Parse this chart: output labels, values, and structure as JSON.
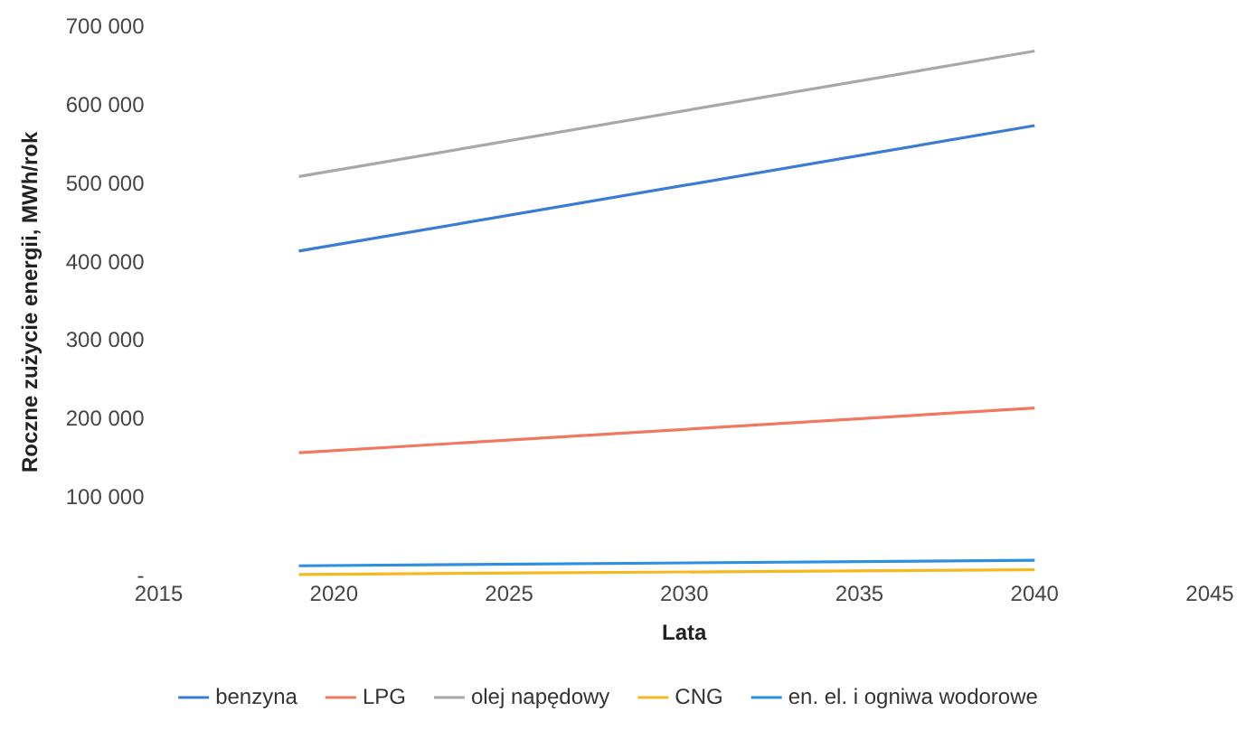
{
  "chart_data": {
    "type": "line",
    "xlabel": "Lata",
    "ylabel": "Roczne zużycie energii, MWh/rok",
    "x": [
      2019,
      2040
    ],
    "series": [
      {
        "name": "benzyna",
        "color": "#3a7bd5",
        "values": [
          415000,
          575000
        ]
      },
      {
        "name": "LPG",
        "color": "#f07860",
        "values": [
          158000,
          215000
        ]
      },
      {
        "name": "olej napędowy",
        "color": "#a8a8a8",
        "values": [
          510000,
          670000
        ]
      },
      {
        "name": "CNG",
        "color": "#f5b820",
        "values": [
          3000,
          9000
        ]
      },
      {
        "name": "en. el. i ogniwa wodorowe",
        "color": "#2e8ee0",
        "values": [
          14000,
          21000
        ]
      }
    ],
    "xlim": [
      2015,
      2045
    ],
    "xticks": [
      2015,
      2020,
      2025,
      2030,
      2035,
      2040,
      2045
    ],
    "ylim": [
      0,
      700000
    ],
    "yticks": [
      {
        "value": 0,
        "label": "-"
      },
      {
        "value": 100000,
        "label": "100 000"
      },
      {
        "value": 200000,
        "label": "200 000"
      },
      {
        "value": 300000,
        "label": "300 000"
      },
      {
        "value": 400000,
        "label": "400 000"
      },
      {
        "value": 500000,
        "label": "500 000"
      },
      {
        "value": 600000,
        "label": "600 000"
      },
      {
        "value": 700000,
        "label": "700 000"
      }
    ],
    "grid": false,
    "legend": "bottom",
    "marker": "none",
    "line_style": "solid"
  }
}
